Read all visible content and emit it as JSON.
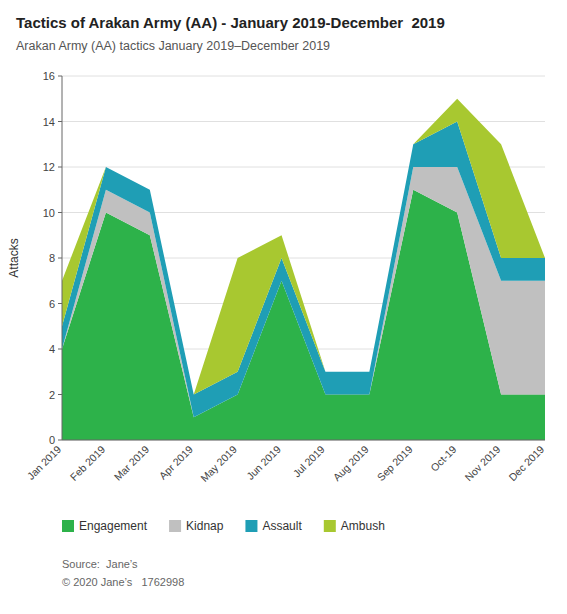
{
  "chart_data": {
    "type": "area",
    "stacked": true,
    "title": "Tactics of Arakan Army (AA) - January 2019-December  2019",
    "subtitle": "Arakan Army (AA) tactics January 2019–December 2019",
    "y_label": "Attacks",
    "categories": [
      "Jan 2019",
      "Feb 2019",
      "Mar 2019",
      "Apr 2019",
      "May 2019",
      "Jun 2019",
      "Jul 2019",
      "Aug 2019",
      "Sep 2019",
      "Oct-19",
      "Nov 2019",
      "Dec 2019"
    ],
    "series": [
      {
        "name": "Engagement",
        "color": "#2db24a",
        "values": [
          4,
          10,
          9,
          1,
          2,
          7,
          2,
          2,
          11,
          10,
          2,
          2
        ]
      },
      {
        "name": "Kidnap",
        "color": "#c0c0c0",
        "values": [
          0,
          1,
          1,
          0,
          0,
          0,
          0,
          0,
          1,
          2,
          5,
          5
        ]
      },
      {
        "name": "Assault",
        "color": "#1f9eb5",
        "values": [
          1,
          1,
          1,
          1,
          1,
          1,
          1,
          1,
          1,
          2,
          1,
          1
        ]
      },
      {
        "name": "Ambush",
        "color": "#a8c830",
        "values": [
          2,
          0,
          0,
          0,
          5,
          1,
          0,
          0,
          0,
          1,
          5,
          0
        ]
      }
    ],
    "ylim": [
      0,
      16
    ],
    "yticks": [
      0,
      2,
      4,
      6,
      8,
      10,
      12,
      14,
      16
    ],
    "grid": true,
    "legend": "bottom",
    "annotations": [
      "Source:  Jane’s",
      "© 2020 Jane’s   1762998"
    ]
  }
}
